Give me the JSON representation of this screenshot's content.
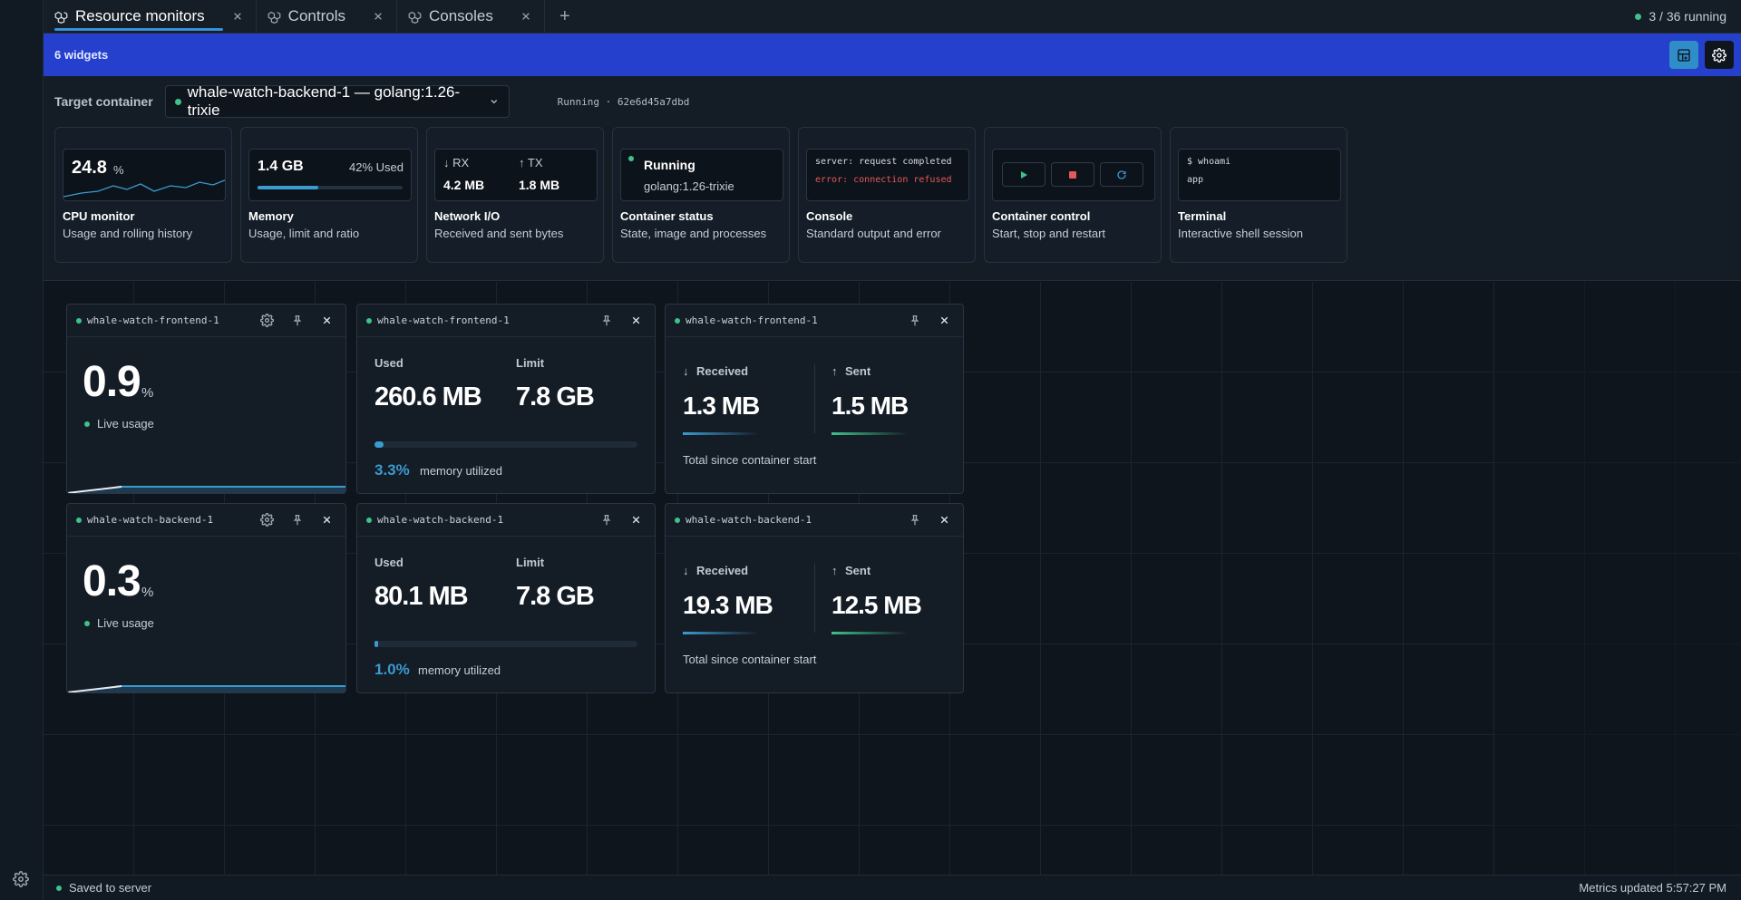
{
  "tabs": [
    {
      "label": "Resource monitors",
      "active": true
    },
    {
      "label": "Controls",
      "active": false
    },
    {
      "label": "Consoles",
      "active": false
    }
  ],
  "tab_add": "+",
  "running": "3 / 36 running",
  "blue_bar": {
    "widget_count": "6 widgets"
  },
  "target": {
    "label": "Target container",
    "selected": "whale-watch-backend-1 — golang:1.26-trixie",
    "status": "Running · 62e6d45a7dbd"
  },
  "palette": [
    {
      "title": "CPU monitor",
      "desc": "Usage and rolling history",
      "value": "24.8",
      "unit": "%"
    },
    {
      "title": "Memory",
      "desc": "Usage, limit and ratio",
      "value": "1.4 GB",
      "ratio_text": "42% Used",
      "ratio": 0.42
    },
    {
      "title": "Network I/O",
      "desc": "Received and sent bytes",
      "rx_label": "↓ RX",
      "tx_label": "↑ TX",
      "rx": "4.2 MB",
      "tx": "1.8 MB"
    },
    {
      "title": "Container status",
      "desc": "State, image and processes",
      "state": "Running",
      "image": "golang:1.26-trixie"
    },
    {
      "title": "Console",
      "desc": "Standard output and error",
      "line1": "server: request completed",
      "line2": "error: connection refused"
    },
    {
      "title": "Container control",
      "desc": "Start, stop and restart"
    },
    {
      "title": "Terminal",
      "desc": "Interactive shell session",
      "line1": "$ whoami",
      "line2": "app"
    }
  ],
  "widgets": {
    "cpu": [
      {
        "name": "whale-watch-frontend-1",
        "value": "0.9",
        "unit": "%",
        "caption": "Live usage"
      },
      {
        "name": "whale-watch-backend-1",
        "value": "0.3",
        "unit": "%",
        "caption": "Live usage"
      }
    ],
    "memory": [
      {
        "name": "whale-watch-frontend-1",
        "used_label": "Used",
        "limit_label": "Limit",
        "used": "260.6 MB",
        "limit": "7.8 GB",
        "pct": "3.3%",
        "pct_caption": "memory utilized",
        "ratio": 0.033
      },
      {
        "name": "whale-watch-backend-1",
        "used_label": "Used",
        "limit_label": "Limit",
        "used": "80.1 MB",
        "limit": "7.8 GB",
        "pct": "1.0%",
        "pct_caption": "memory utilized",
        "ratio": 0.01
      }
    ],
    "network": [
      {
        "name": "whale-watch-frontend-1",
        "rx_label": "Received",
        "tx_label": "Sent",
        "rx": "1.3 MB",
        "tx": "1.5 MB",
        "caption": "Total since container start"
      },
      {
        "name": "whale-watch-backend-1",
        "rx_label": "Received",
        "tx_label": "Sent",
        "rx": "19.3 MB",
        "tx": "12.5 MB",
        "caption": "Total since container start"
      }
    ]
  },
  "statusbar": {
    "saved": "Saved to server",
    "updated": "Metrics updated 5:57:27 PM"
  },
  "colors": {
    "accent_blue": "#2440cc",
    "running_green": "#3ec28a",
    "memory_blue": "#3a9bd1",
    "error_red": "#e05a5a"
  }
}
